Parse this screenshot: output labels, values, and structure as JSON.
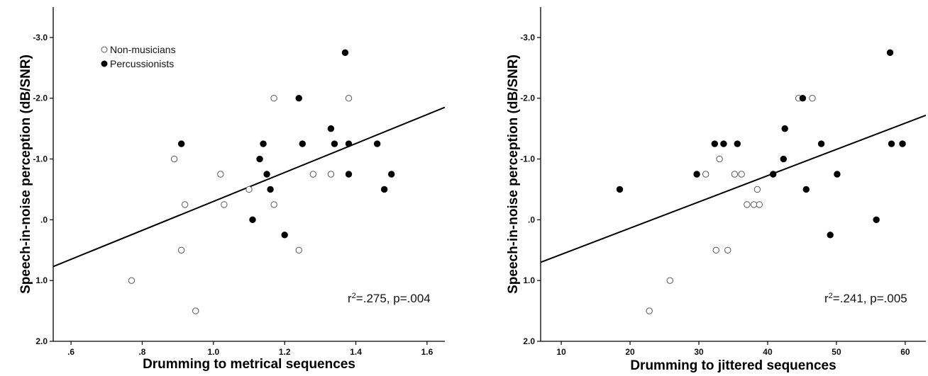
{
  "chart_data": [
    {
      "type": "scatter",
      "title": "",
      "xlabel": "Drumming to metrical sequences",
      "ylabel": "Speech-in-noise perception (dB/SNR)",
      "xlim": [
        0.55,
        1.65
      ],
      "ylim": [
        2.0,
        -3.5
      ],
      "y_axis_inverted": true,
      "x_ticks": [
        0.6,
        0.8,
        1.0,
        1.2,
        1.4,
        1.6
      ],
      "x_tick_labels": [
        ".6",
        ".8",
        "1.0",
        "1.2",
        "1.4",
        "1.6"
      ],
      "y_ticks": [
        -3.0,
        -2.0,
        -1.0,
        0.0,
        1.0,
        2.0
      ],
      "y_tick_labels": [
        "-3.0",
        "-2.0",
        "-1.0",
        ".0",
        "1.0",
        "2.0"
      ],
      "grid": false,
      "legend": {
        "placement": "top-left",
        "entries": [
          {
            "label": "Non-musicians",
            "marker": "open-circle"
          },
          {
            "label": "Percussionists",
            "marker": "filled-circle"
          }
        ]
      },
      "series": [
        {
          "name": "Non-musicians",
          "marker": "open-circle",
          "points": [
            {
              "x": 0.77,
              "y": 1.0
            },
            {
              "x": 0.89,
              "y": -1.0
            },
            {
              "x": 0.91,
              "y": 0.5
            },
            {
              "x": 0.92,
              "y": -0.25
            },
            {
              "x": 0.95,
              "y": 1.5
            },
            {
              "x": 1.02,
              "y": -0.75
            },
            {
              "x": 1.03,
              "y": -0.25
            },
            {
              "x": 1.1,
              "y": -0.5
            },
            {
              "x": 1.17,
              "y": -2.0
            },
            {
              "x": 1.17,
              "y": -0.25
            },
            {
              "x": 1.24,
              "y": 0.5
            },
            {
              "x": 1.28,
              "y": -0.75
            },
            {
              "x": 1.33,
              "y": -0.75
            },
            {
              "x": 1.38,
              "y": -2.0
            }
          ]
        },
        {
          "name": "Percussionists",
          "marker": "filled-circle",
          "points": [
            {
              "x": 0.91,
              "y": -1.25
            },
            {
              "x": 1.11,
              "y": 0.0
            },
            {
              "x": 1.13,
              "y": -1.0
            },
            {
              "x": 1.14,
              "y": -1.25
            },
            {
              "x": 1.15,
              "y": -0.75
            },
            {
              "x": 1.16,
              "y": -0.5
            },
            {
              "x": 1.2,
              "y": 0.25
            },
            {
              "x": 1.24,
              "y": -2.0
            },
            {
              "x": 1.25,
              "y": -1.25
            },
            {
              "x": 1.33,
              "y": -1.5
            },
            {
              "x": 1.34,
              "y": -1.25
            },
            {
              "x": 1.37,
              "y": -2.75
            },
            {
              "x": 1.38,
              "y": -1.25
            },
            {
              "x": 1.38,
              "y": -0.75
            },
            {
              "x": 1.46,
              "y": -1.25
            },
            {
              "x": 1.48,
              "y": -0.5
            },
            {
              "x": 1.5,
              "y": -0.75
            }
          ]
        }
      ],
      "fit_line": {
        "x": [
          0.55,
          1.65
        ],
        "y": [
          0.77,
          -1.85
        ]
      },
      "annotation": {
        "prefix": "r",
        "superscript": "2",
        "text": "=.275, p=.004"
      }
    },
    {
      "type": "scatter",
      "title": "",
      "xlabel": "Drumming to jittered sequences",
      "ylabel": "Speech-in-noise perception (dB/SNR)",
      "xlim": [
        7,
        63
      ],
      "ylim": [
        2.0,
        -3.5
      ],
      "y_axis_inverted": true,
      "x_ticks": [
        10,
        20,
        30,
        40,
        50,
        60
      ],
      "x_tick_labels": [
        "10",
        "20",
        "30",
        "40",
        "50",
        "60"
      ],
      "y_ticks": [
        -3.0,
        -2.0,
        -1.0,
        0.0,
        1.0,
        2.0
      ],
      "y_tick_labels": [
        "-3.0",
        "-2.0",
        "-1.0",
        ".0",
        "1.0",
        "2.0"
      ],
      "grid": false,
      "series": [
        {
          "name": "Non-musicians",
          "marker": "open-circle",
          "points": [
            {
              "x": 22.8,
              "y": 1.5
            },
            {
              "x": 25.8,
              "y": 1.0
            },
            {
              "x": 31.0,
              "y": -0.75
            },
            {
              "x": 32.5,
              "y": 0.5
            },
            {
              "x": 33.0,
              "y": -1.0
            },
            {
              "x": 34.2,
              "y": 0.5
            },
            {
              "x": 35.2,
              "y": -0.75
            },
            {
              "x": 36.2,
              "y": -0.75
            },
            {
              "x": 37.0,
              "y": -0.25
            },
            {
              "x": 38.0,
              "y": -0.25
            },
            {
              "x": 38.5,
              "y": -0.5
            },
            {
              "x": 38.8,
              "y": -0.25
            },
            {
              "x": 44.5,
              "y": -2.0
            },
            {
              "x": 46.5,
              "y": -2.0
            }
          ]
        },
        {
          "name": "Percussionists",
          "marker": "filled-circle",
          "points": [
            {
              "x": 18.5,
              "y": -0.5
            },
            {
              "x": 29.7,
              "y": -0.75
            },
            {
              "x": 32.3,
              "y": -1.25
            },
            {
              "x": 33.6,
              "y": -1.25
            },
            {
              "x": 35.6,
              "y": -1.25
            },
            {
              "x": 40.8,
              "y": -0.75
            },
            {
              "x": 42.3,
              "y": -1.0
            },
            {
              "x": 42.5,
              "y": -1.5
            },
            {
              "x": 45.1,
              "y": -2.0
            },
            {
              "x": 45.6,
              "y": -0.5
            },
            {
              "x": 47.8,
              "y": -1.25
            },
            {
              "x": 49.1,
              "y": 0.25
            },
            {
              "x": 50.1,
              "y": -0.75
            },
            {
              "x": 55.8,
              "y": 0.0
            },
            {
              "x": 57.8,
              "y": -2.75
            },
            {
              "x": 58.0,
              "y": -1.25
            },
            {
              "x": 59.6,
              "y": -1.25
            }
          ]
        }
      ],
      "fit_line": {
        "x": [
          7,
          63
        ],
        "y": [
          0.7,
          -1.72
        ]
      },
      "annotation": {
        "prefix": "r",
        "superscript": "2",
        "text": "=.241, p=.005"
      }
    }
  ]
}
